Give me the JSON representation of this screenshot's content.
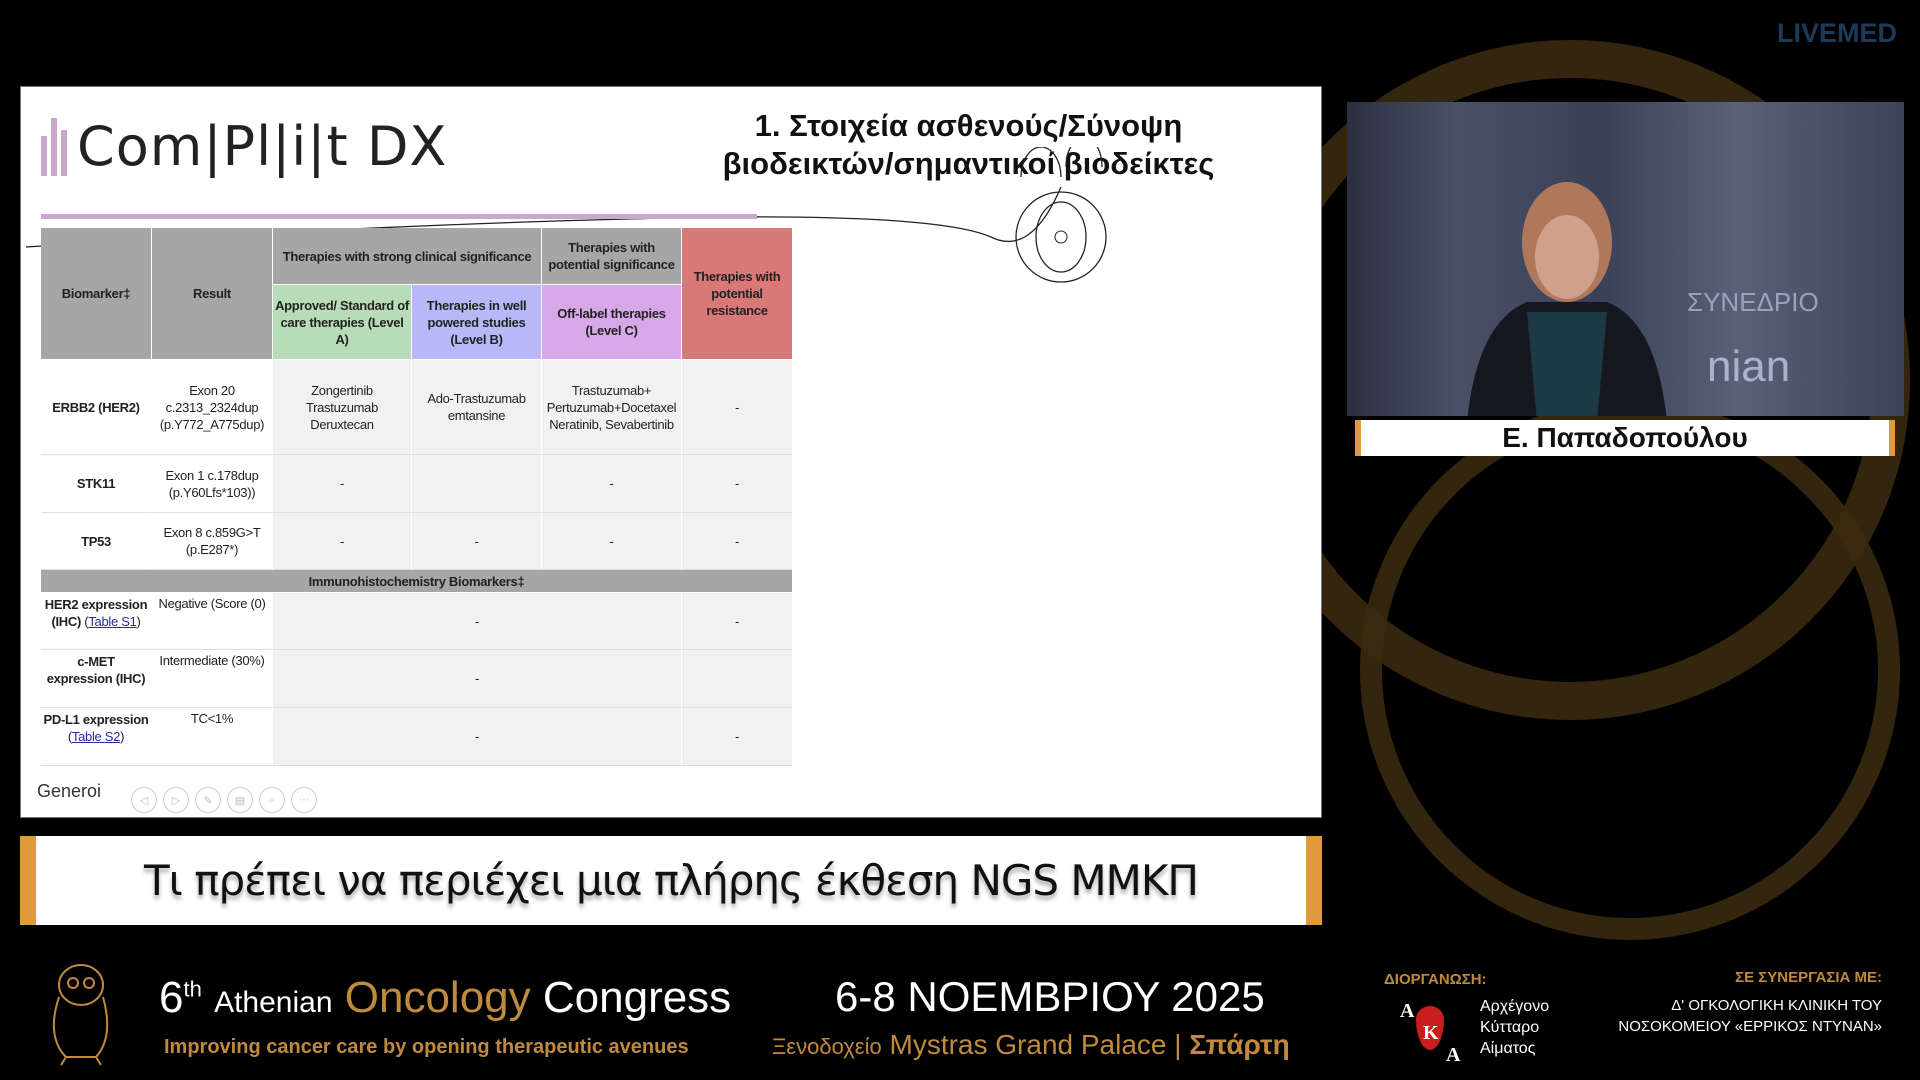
{
  "watermark": "LIVEMED",
  "slide": {
    "logo": "Com|Pl|i|t DX",
    "title_line1": "1. Στοιχεία ασθενούς/Σύνοψη",
    "title_line2": "βιοδεικτών/σημαντικοί βιοδείκτες",
    "overlay_text": "Generoi",
    "table": {
      "headers": {
        "biomarker": "Biomarker‡",
        "result": "Result",
        "strong": "Therapies with strong clinical significance",
        "potential": "Therapies with potential significance",
        "resistance": "Therapies with potential resistance",
        "levelA": "Approved/ Standard of care therapies (Level A)",
        "levelB": "Therapies in well powered studies (Level B)",
        "levelC": "Off-label therapies (Level C)"
      },
      "rows": [
        {
          "biomarker": "ERBB2 (HER2)",
          "result": "Exon 20 c.2313_2324dup (p.Y772_A775dup)",
          "a": "Zongertinib Trastuzumab Deruxtecan",
          "b": "Ado-Trastuzumab emtansine",
          "c": "Trastuzumab+ Pertuzumab+Docetaxel Neratinib, Sevabertinib",
          "r": "-"
        },
        {
          "biomarker": "STK11",
          "result": "Exon 1 c.178dup (p.Y60Lfs*103))",
          "a": "-",
          "b": "",
          "c": "-",
          "r": "-"
        },
        {
          "biomarker": "TP53",
          "result": "Exon 8 c.859G>T (p.E287*)",
          "a": "-",
          "b": "-",
          "c": "-",
          "r": "-"
        }
      ],
      "ihc_header": "Immunohistochemistry Biomarkers‡",
      "ihc_rows": [
        {
          "biomarker": "HER2 expression (IHC)",
          "link": "Table S1",
          "result": "Negative (Score (0)",
          "therapy": "-",
          "r": "-"
        },
        {
          "biomarker": "c-MET expression (IHC)",
          "link": "",
          "result": "Intermediate (30%)",
          "therapy": "-",
          "r": ""
        },
        {
          "biomarker": "PD-L1 expression",
          "link": "Table S2",
          "result": "TC<1%",
          "therapy": "-",
          "r": "-"
        }
      ]
    },
    "colors": {
      "header_gray": "#a6a6a6",
      "levelA": "#b8dcb8",
      "levelB": "#b8b8f8",
      "levelC": "#d6a8e8",
      "resistance": "#d87878"
    }
  },
  "speaker": {
    "name": "Ε. Παπαδοπούλου",
    "backdrop_text1": "ΣΥΝΕΔΡΙΟ",
    "backdrop_text2": "nian"
  },
  "caption": "Τι πρέπει να περιέχει μια πλήρης έκθεση NGS ΜΜΚΠ",
  "footer": {
    "edition": "6",
    "edition_sup": "th",
    "athenian": "Athenian",
    "oncology": "Oncology",
    "congress": "Congress",
    "tagline": "Improving cancer care by opening therapeutic avenues",
    "dates": "6-8 ΝΟΕΜΒΡΙΟΥ 2025",
    "venue_prefix": "Ξενοδοχείο",
    "venue": "Mystras Grand Palace",
    "city": "Σπάρτη",
    "organizer_label": "ΔΙΟΡΓΑΝΩΣΗ:",
    "organizer_line1": "Αρχέγονο",
    "organizer_line2": "Κύτταρο",
    "organizer_line3": "Αίματος",
    "partner_label": "ΣΕ ΣΥΝΕΡΓΑΣΙΑ ΜΕ:",
    "partner_line1": "Δ' ΟΓΚΟΛΟΓΙΚΗ ΚΛΙΝΙΚΗ ΤΟΥ",
    "partner_line2": "ΝΟΣΟΚΟΜΕΙΟΥ «ΕΡΡΙΚΟΣ ΝΤΥΝΑΝ»",
    "logo_letters": [
      "Α",
      "Κ",
      "Α"
    ]
  }
}
